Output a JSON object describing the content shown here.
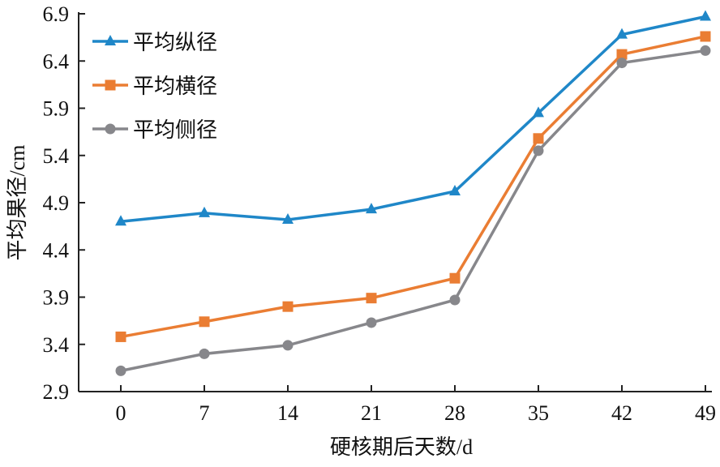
{
  "chart_data": {
    "type": "line",
    "title": "",
    "xlabel": "硬核期后天数/d",
    "ylabel": "平均果径/cm",
    "x": [
      0,
      7,
      14,
      21,
      28,
      35,
      42,
      49
    ],
    "x_tick_labels": [
      "0",
      "7",
      "14",
      "21",
      "28",
      "35",
      "42",
      "49"
    ],
    "ylim": [
      2.9,
      6.9
    ],
    "y_ticks": [
      2.9,
      3.4,
      3.9,
      4.4,
      4.9,
      5.4,
      5.9,
      6.4,
      6.9
    ],
    "y_tick_labels": [
      "2.9",
      "3.4",
      "3.9",
      "4.4",
      "4.9",
      "5.4",
      "5.9",
      "6.4",
      "6.9"
    ],
    "grid": false,
    "legend_position": "top-left",
    "series": [
      {
        "name": "平均纵径",
        "color": "#1f87c8",
        "marker": "triangle",
        "values": [
          4.7,
          4.79,
          4.72,
          4.83,
          5.02,
          5.85,
          6.68,
          6.87
        ]
      },
      {
        "name": "平均横径",
        "color": "#ea7d33",
        "marker": "square",
        "values": [
          3.48,
          3.64,
          3.8,
          3.89,
          4.1,
          5.58,
          6.47,
          6.66
        ]
      },
      {
        "name": "平均侧径",
        "color": "#87878b",
        "marker": "circle",
        "values": [
          3.12,
          3.3,
          3.39,
          3.63,
          3.87,
          5.45,
          6.38,
          6.51
        ]
      }
    ]
  }
}
